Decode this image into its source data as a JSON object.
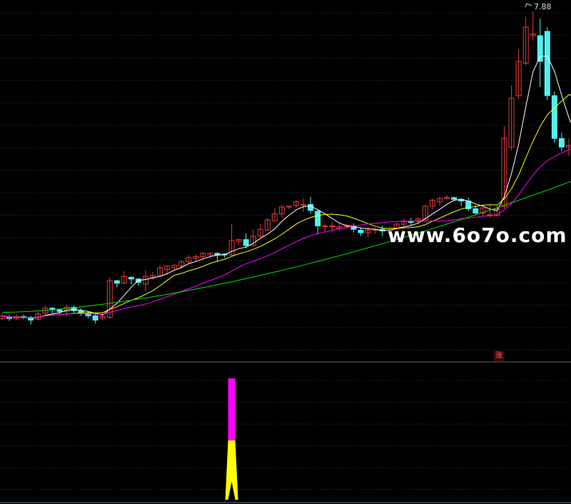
{
  "watermark": "www.6o7o.com",
  "peak_label": "7.88",
  "zhang_badge": "涨",
  "colors": {
    "background": "#000000",
    "grid": "#2a3a4a",
    "up": "#e23b3b",
    "down": "#54f0f0",
    "ma5": "#ffffff",
    "ma10": "#ffff00",
    "ma20": "#ff00ff",
    "ma60": "#00e000",
    "signal_top": "#ff00ff",
    "signal_bottom": "#ffff00"
  },
  "chart_data": [
    {
      "type": "candlestick",
      "title": "",
      "ylim": [
        4.1,
        7.95
      ],
      "max_label": 7.88,
      "candles": [
        [
          4.3,
          4.33,
          4.28,
          4.36
        ],
        [
          4.31,
          4.3,
          4.27,
          4.34
        ],
        [
          4.3,
          4.32,
          4.28,
          4.35
        ],
        [
          4.32,
          4.31,
          4.29,
          4.34
        ],
        [
          4.31,
          4.28,
          4.23,
          4.33
        ],
        [
          4.29,
          4.35,
          4.28,
          4.37
        ],
        [
          4.36,
          4.42,
          4.34,
          4.45
        ],
        [
          4.42,
          4.4,
          4.36,
          4.43
        ],
        [
          4.4,
          4.38,
          4.35,
          4.41
        ],
        [
          4.38,
          4.43,
          4.33,
          4.46
        ],
        [
          4.43,
          4.39,
          4.36,
          4.45
        ],
        [
          4.39,
          4.37,
          4.33,
          4.42
        ],
        [
          4.36,
          4.33,
          4.3,
          4.38
        ],
        [
          4.33,
          4.28,
          4.24,
          4.36
        ],
        [
          4.3,
          4.32,
          4.28,
          4.37
        ],
        [
          4.31,
          4.74,
          4.3,
          4.78
        ],
        [
          4.74,
          4.71,
          4.66,
          4.75
        ],
        [
          4.71,
          4.79,
          4.7,
          4.85
        ],
        [
          4.78,
          4.76,
          4.7,
          4.79
        ],
        [
          4.76,
          4.72,
          4.68,
          4.77
        ],
        [
          4.7,
          4.79,
          4.62,
          4.86
        ],
        [
          4.78,
          4.8,
          4.75,
          4.84
        ],
        [
          4.8,
          4.89,
          4.79,
          4.92
        ],
        [
          4.87,
          4.91,
          4.81,
          4.92
        ],
        [
          4.89,
          4.92,
          4.86,
          4.93
        ],
        [
          4.91,
          4.96,
          4.88,
          4.98
        ],
        [
          4.96,
          5.01,
          4.93,
          5.04
        ],
        [
          5.0,
          5.02,
          4.97,
          5.05
        ],
        [
          5.02,
          5.06,
          4.99,
          5.07
        ],
        [
          5.04,
          5.06,
          5.0,
          5.07
        ],
        [
          5.06,
          5.04,
          4.96,
          5.07
        ],
        [
          5.05,
          5.04,
          5.01,
          5.06
        ],
        [
          5.04,
          5.21,
          5.03,
          5.4
        ],
        [
          5.2,
          5.22,
          5.16,
          5.23
        ],
        [
          5.22,
          5.15,
          5.12,
          5.29
        ],
        [
          5.15,
          5.26,
          5.15,
          5.34
        ],
        [
          5.26,
          5.34,
          5.25,
          5.4
        ],
        [
          5.33,
          5.45,
          5.33,
          5.47
        ],
        [
          5.44,
          5.52,
          5.43,
          5.59
        ],
        [
          5.52,
          5.6,
          5.47,
          5.63
        ],
        [
          5.6,
          5.61,
          5.57,
          5.61
        ],
        [
          5.62,
          5.66,
          5.59,
          5.68
        ],
        [
          5.62,
          5.63,
          5.54,
          5.7
        ],
        [
          5.63,
          5.56,
          5.52,
          5.72
        ],
        [
          5.55,
          5.38,
          5.28,
          5.58
        ],
        [
          5.38,
          5.38,
          5.31,
          5.41
        ],
        [
          5.38,
          5.38,
          5.32,
          5.43
        ],
        [
          5.35,
          5.37,
          5.32,
          5.41
        ],
        [
          5.37,
          5.39,
          5.34,
          5.4
        ],
        [
          5.38,
          5.34,
          5.3,
          5.41
        ],
        [
          5.33,
          5.3,
          5.26,
          5.36
        ],
        [
          5.3,
          5.33,
          5.25,
          5.37
        ],
        [
          5.33,
          5.34,
          5.29,
          5.36
        ],
        [
          5.34,
          5.32,
          5.26,
          5.38
        ],
        [
          5.33,
          5.35,
          5.31,
          5.37
        ],
        [
          5.35,
          5.4,
          5.34,
          5.42
        ],
        [
          5.4,
          5.43,
          5.38,
          5.46
        ],
        [
          5.43,
          5.42,
          5.38,
          5.47
        ],
        [
          5.44,
          5.46,
          5.4,
          5.48
        ],
        [
          5.45,
          5.61,
          5.45,
          5.63
        ],
        [
          5.61,
          5.68,
          5.57,
          5.7
        ],
        [
          5.66,
          5.7,
          5.61,
          5.72
        ],
        [
          5.7,
          5.71,
          5.69,
          5.74
        ],
        [
          5.71,
          5.69,
          5.67,
          5.72
        ],
        [
          5.69,
          5.67,
          5.61,
          5.7
        ],
        [
          5.67,
          5.58,
          5.55,
          5.71
        ],
        [
          5.58,
          5.53,
          5.51,
          5.62
        ],
        [
          5.53,
          5.59,
          5.5,
          5.63
        ],
        [
          5.51,
          5.51,
          5.48,
          5.62
        ],
        [
          5.5,
          5.58,
          5.49,
          5.62
        ],
        [
          5.61,
          6.4,
          5.58,
          6.54
        ],
        [
          6.3,
          6.87,
          6.26,
          7.02
        ],
        [
          6.9,
          7.3,
          6.86,
          7.44
        ],
        [
          7.28,
          7.7,
          7.25,
          7.82
        ],
        [
          7.6,
          7.62,
          7.54,
          7.88
        ],
        [
          7.6,
          7.3,
          7.0,
          7.8
        ],
        [
          7.65,
          6.9,
          6.85,
          7.7
        ],
        [
          6.9,
          6.4,
          6.35,
          6.95
        ],
        [
          6.4,
          6.3,
          6.25,
          6.47
        ],
        [
          6.3,
          6.32,
          6.2,
          6.4
        ],
        [
          6.33,
          6.3,
          6.26,
          6.34
        ]
      ],
      "moving_averages": [
        "MA5",
        "MA10",
        "MA20",
        "MA60"
      ]
    },
    {
      "type": "bar",
      "title": "",
      "note": "signal indicator",
      "ylim": [
        0,
        1
      ],
      "signal_index": 32,
      "segments": [
        {
          "from": 0.0,
          "to": 0.49,
          "color": "yellow"
        },
        {
          "from": 0.49,
          "to": 1.0,
          "color": "magenta"
        }
      ]
    }
  ]
}
